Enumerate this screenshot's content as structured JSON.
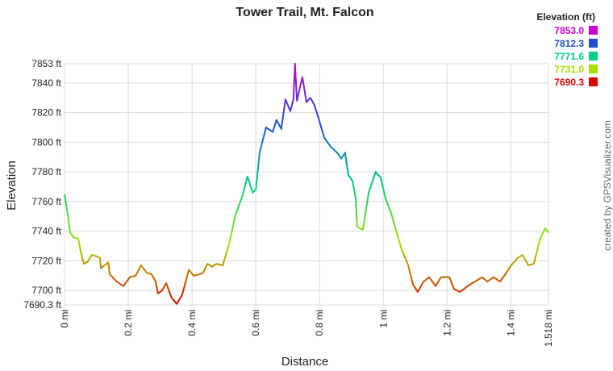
{
  "chart_data": {
    "type": "line",
    "title": "Tower Trail, Mt. Falcon",
    "xlabel": "Distance",
    "ylabel": "Elevation",
    "credit": "created by GPSVisualizer.com",
    "x": [
      0,
      0.008,
      0.018,
      0.028,
      0.043,
      0.053,
      0.061,
      0.071,
      0.086,
      0.101,
      0.111,
      0.114,
      0.132,
      0.137,
      0.142,
      0.164,
      0.185,
      0.205,
      0.223,
      0.24,
      0.258,
      0.273,
      0.286,
      0.293,
      0.306,
      0.319,
      0.336,
      0.352,
      0.369,
      0.39,
      0.405,
      0.425,
      0.435,
      0.448,
      0.463,
      0.476,
      0.496,
      0.516,
      0.536,
      0.557,
      0.574,
      0.59,
      0.6,
      0.612,
      0.632,
      0.653,
      0.665,
      0.68,
      0.693,
      0.708,
      0.718,
      0.723,
      0.729,
      0.746,
      0.759,
      0.771,
      0.784,
      0.797,
      0.815,
      0.835,
      0.855,
      0.868,
      0.88,
      0.89,
      0.903,
      0.913,
      0.918,
      0.936,
      0.954,
      0.976,
      0.992,
      1.007,
      1.025,
      1.042,
      1.057,
      1.078,
      1.093,
      1.108,
      1.126,
      1.144,
      1.164,
      1.181,
      1.207,
      1.222,
      1.24,
      1.265,
      1.295,
      1.31,
      1.326,
      1.346,
      1.366,
      1.386,
      1.401,
      1.422,
      1.437,
      1.455,
      1.472,
      1.492,
      1.508,
      1.518
    ],
    "values": [
      7765,
      7754,
      7739,
      7736,
      7735,
      7724,
      7718,
      7719,
      7724,
      7723,
      7722,
      7715,
      7718,
      7719,
      7711,
      7706,
      7703,
      7709,
      7710,
      7717,
      7712,
      7711,
      7706,
      7698,
      7700,
      7705,
      7695,
      7691,
      7697,
      7714,
      7710,
      7711,
      7712,
      7718,
      7716,
      7718,
      7717,
      7731,
      7751,
      7763,
      7777,
      7766,
      7768,
      7793,
      7810,
      7807,
      7815,
      7809,
      7829,
      7821,
      7829,
      7853,
      7828,
      7844,
      7827,
      7830,
      7825,
      7816,
      7803,
      7797,
      7793,
      7789,
      7793,
      7778,
      7774,
      7763,
      7743,
      7741,
      7766,
      7780,
      7776,
      7762,
      7752,
      7739,
      7728,
      7717,
      7704,
      7699,
      7706,
      7709,
      7703,
      7709,
      7709,
      7701,
      7699,
      7703,
      7707,
      7709,
      7706,
      7709,
      7706,
      7712,
      7717,
      7722,
      7724,
      7717,
      7718,
      7735,
      7742,
      7739
    ],
    "xlim": [
      0,
      1.518
    ],
    "xticks": [
      {
        "value": 0,
        "label": "0 mi"
      },
      {
        "value": 0.2,
        "label": "0.2 mi"
      },
      {
        "value": 0.4,
        "label": "0.4 mi"
      },
      {
        "value": 0.6,
        "label": "0.6 mi"
      },
      {
        "value": 0.8,
        "label": "0.8 mi"
      },
      {
        "value": 1,
        "label": "1 mi"
      },
      {
        "value": 1.2,
        "label": "1.2 mi"
      },
      {
        "value": 1.4,
        "label": "1.4 mi"
      },
      {
        "value": 1.518,
        "label": "1.518 mi"
      }
    ],
    "ylim": [
      7690.3,
      7853
    ],
    "yticks": [
      {
        "value": 7690.3,
        "label": "7690.3 ft"
      },
      {
        "value": 7700,
        "label": "7700 ft"
      },
      {
        "value": 7720,
        "label": "7720 ft"
      },
      {
        "value": 7740,
        "label": "7740 ft"
      },
      {
        "value": 7760,
        "label": "7760 ft"
      },
      {
        "value": 7780,
        "label": "7780 ft"
      },
      {
        "value": 7800,
        "label": "7800 ft"
      },
      {
        "value": 7820,
        "label": "7820 ft"
      },
      {
        "value": 7840,
        "label": "7840 ft"
      },
      {
        "value": 7853,
        "label": "7853 ft"
      }
    ],
    "grid": true,
    "legend": {
      "title": "Elevation (ft)",
      "position": "top-right",
      "entries": [
        {
          "value": 7853,
          "label": "7853.0",
          "color": "#cc00cc"
        },
        {
          "value": 7812.3,
          "label": "7812.3",
          "color": "#1f4fd0"
        },
        {
          "value": 7771.6,
          "label": "7771.6",
          "color": "#00d080"
        },
        {
          "value": 7731,
          "label": "7731.0",
          "color": "#a8e000"
        },
        {
          "value": 7690.3,
          "label": "7690.3",
          "color": "#dd0000"
        }
      ]
    }
  }
}
